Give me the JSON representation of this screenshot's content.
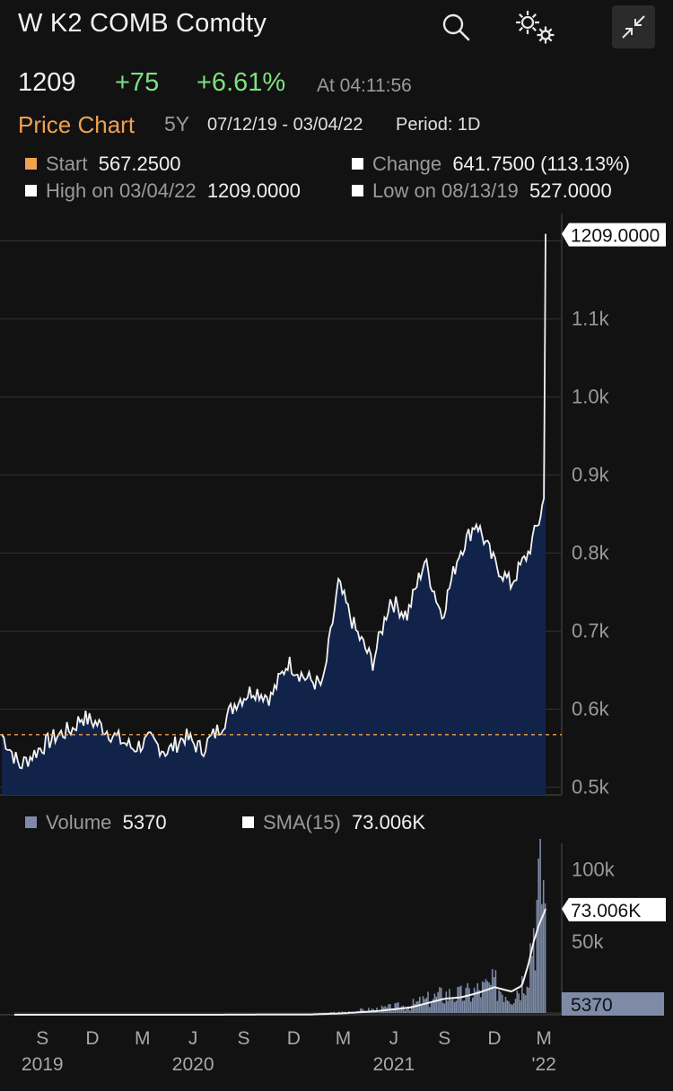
{
  "header": {
    "title": "W K2 COMB Comdty",
    "last": "1209",
    "net_change": "+75",
    "pct_change": "+6.61%",
    "time": "At 04:11:56",
    "chart_label": "Price Chart",
    "range": "5Y",
    "dates": "07/12/19 - 03/04/22",
    "period": "Period: 1D"
  },
  "stats": {
    "start_label": "Start",
    "start_value": "567.2500",
    "change_label": "Change",
    "change_value": "641.7500 (113.13%)",
    "high_label": "High on 03/04/22",
    "high_value": "1209.0000",
    "low_label": "Low on 08/13/19",
    "low_value": "527.0000"
  },
  "volume_legend": {
    "volume_label": "Volume",
    "volume_value": "5370",
    "sma_label": "SMA(15)",
    "sma_value": "73.006K"
  },
  "colors": {
    "up": "#7ee081",
    "accent": "#f0a050",
    "fill": "#12234a",
    "line": "#f2f2f2",
    "volume": "#7d8ba7"
  },
  "chart_data": [
    {
      "type": "area",
      "title": "Price Chart",
      "x": [
        "2019-07-12",
        "2019-08-13",
        "2019-09-15",
        "2019-10-15",
        "2019-11-15",
        "2019-12-01",
        "2020-01-01",
        "2020-02-01",
        "2020-03-01",
        "2020-04-01",
        "2020-05-01",
        "2020-06-01",
        "2020-07-01",
        "2020-08-01",
        "2020-09-01",
        "2020-10-01",
        "2020-11-01",
        "2020-12-01",
        "2021-01-01",
        "2021-02-01",
        "2021-03-01",
        "2021-04-01",
        "2021-05-01",
        "2021-06-01",
        "2021-07-01",
        "2021-08-01",
        "2021-09-01",
        "2021-10-01",
        "2021-11-01",
        "2021-12-01",
        "2022-01-01",
        "2022-02-01",
        "2022-02-20",
        "2022-03-01",
        "2022-03-04"
      ],
      "values": [
        567,
        527,
        548,
        565,
        575,
        590,
        580,
        563,
        550,
        560,
        545,
        565,
        548,
        575,
        610,
        625,
        615,
        660,
        640,
        630,
        760,
        700,
        660,
        740,
        720,
        790,
        720,
        800,
        840,
        790,
        760,
        800,
        840,
        870,
        1209
      ],
      "current_label": "1209.0000",
      "ylim": [
        490,
        1235
      ],
      "yticks": [
        "0.5k",
        "0.6k",
        "0.7k",
        "0.8k",
        "0.9k",
        "1.0k",
        "1.1k"
      ],
      "ytick_values": [
        500,
        600,
        700,
        800,
        900,
        1000,
        1100
      ],
      "reference_line": 567.25
    },
    {
      "type": "bar",
      "title": "Volume",
      "x": [
        "2019-07-12",
        "2020-01-01",
        "2020-07-01",
        "2021-01-01",
        "2021-03-01",
        "2021-05-01",
        "2021-07-01",
        "2021-09-01",
        "2021-10-01",
        "2021-11-01",
        "2021-12-01",
        "2022-01-01",
        "2022-01-20",
        "2022-02-01",
        "2022-02-10",
        "2022-02-20",
        "2022-03-01",
        "2022-03-04"
      ],
      "volume": [
        0,
        0,
        0,
        500,
        2000,
        4000,
        7000,
        15000,
        14000,
        18000,
        22000,
        14000,
        25000,
        45000,
        70000,
        90000,
        110000,
        5370
      ],
      "sma": [
        0,
        0,
        0,
        200,
        1000,
        2500,
        5000,
        11000,
        12000,
        15000,
        19000,
        16000,
        20000,
        35000,
        50000,
        62000,
        70000,
        73006
      ],
      "ylim": [
        0,
        115000
      ],
      "yticks": [
        "50k",
        "100k"
      ],
      "ytick_values": [
        50000,
        100000
      ],
      "sma_label": "73.006K",
      "volume_label": "5370",
      "x_months": [
        "S",
        "D",
        "M",
        "J",
        "S",
        "D",
        "M",
        "J",
        "S",
        "D",
        "M"
      ],
      "x_years": [
        "2019",
        "2020",
        "2021",
        "'22"
      ]
    }
  ]
}
